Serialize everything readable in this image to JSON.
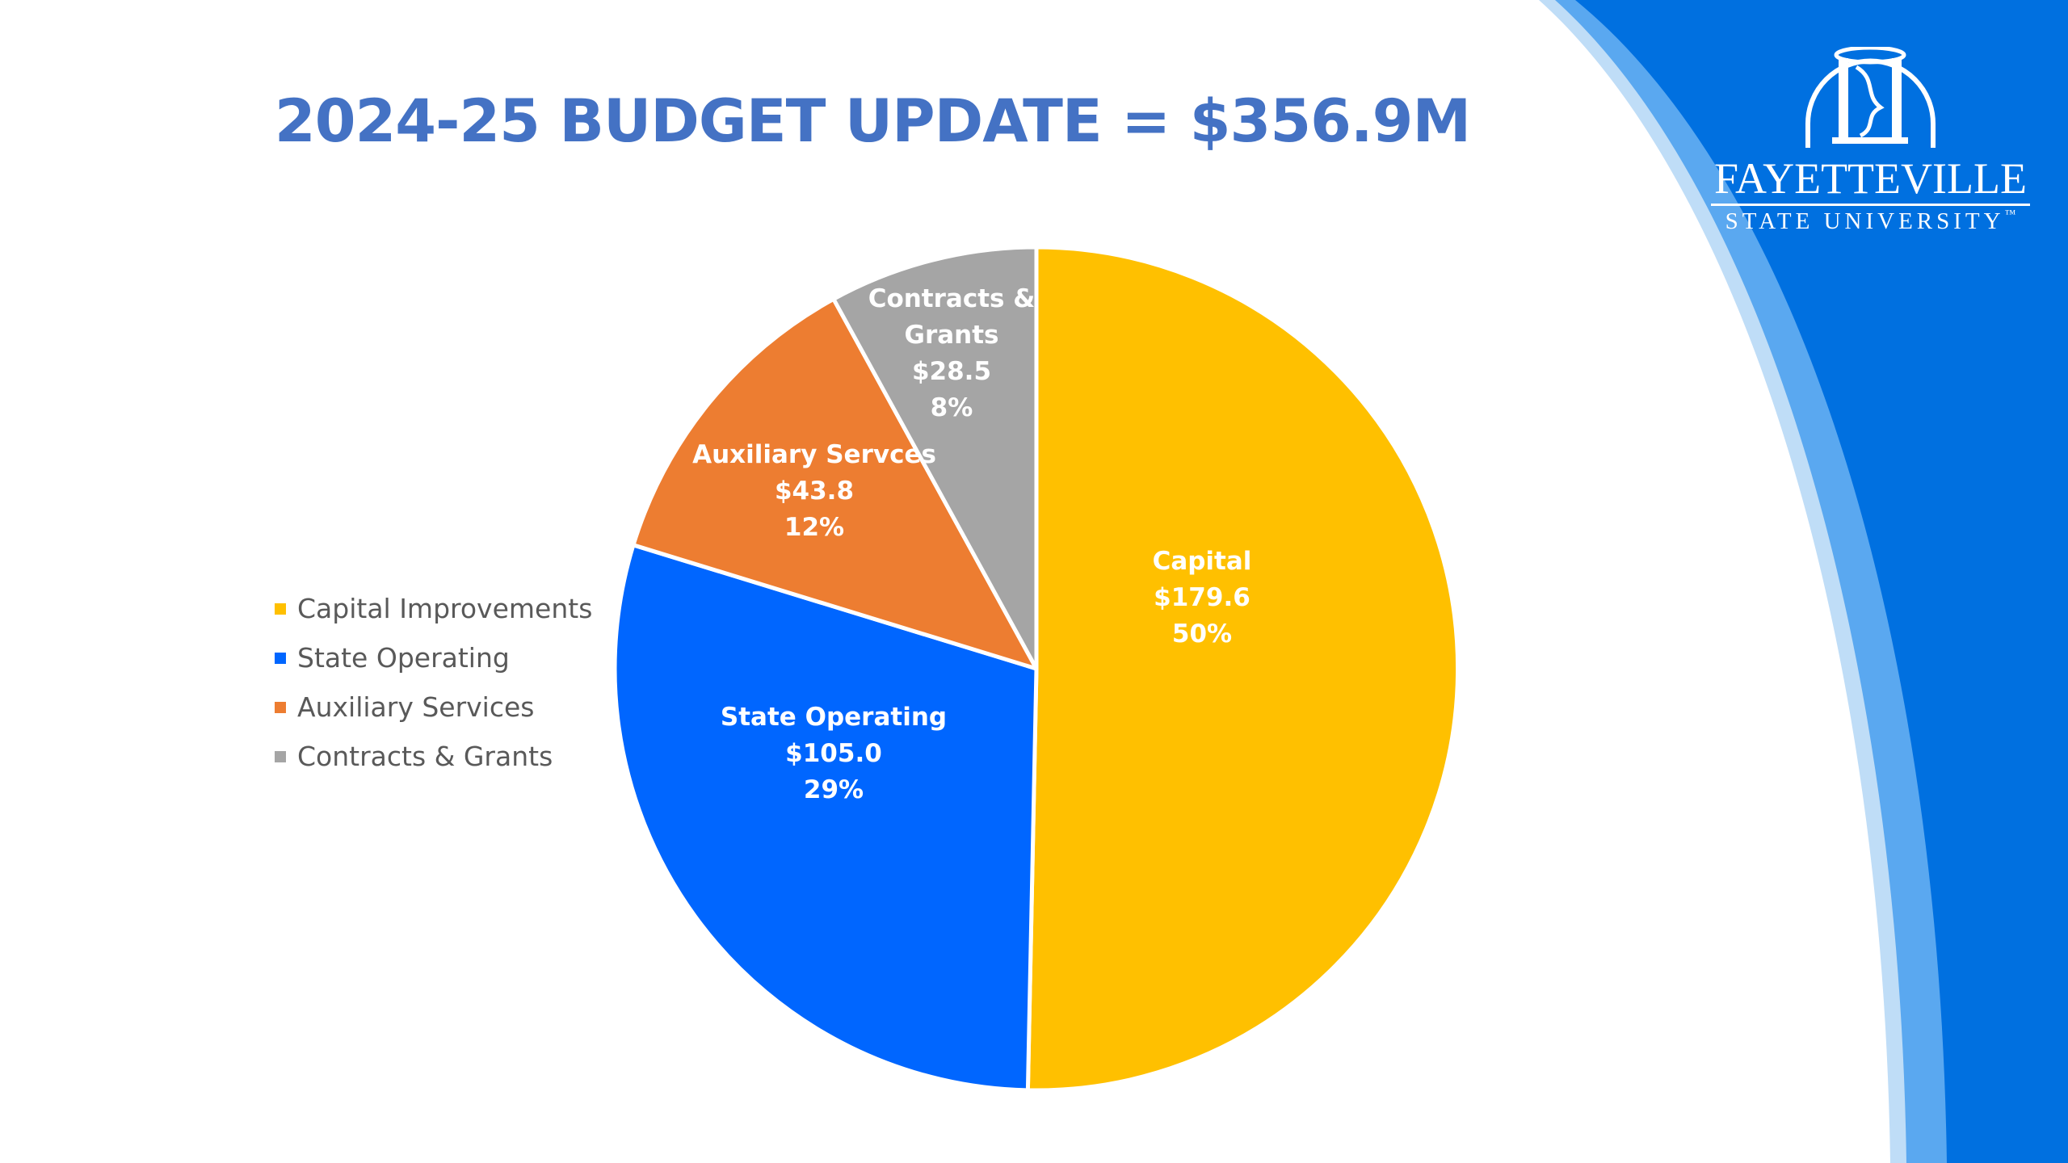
{
  "slide": {
    "title": "2024-25 BUDGET UPDATE = $356.9M"
  },
  "logo": {
    "name": "FAYETTEVILLE",
    "sub": "STATE UNIVERSITY",
    "trademark": "™"
  },
  "colors": {
    "title": "#4472C4",
    "band_dark": "#0070E0",
    "band_mid": "#5AA8F0",
    "band_light": "#BFDDF7"
  },
  "chart_data": {
    "type": "pie",
    "title": "",
    "legend_position": "left",
    "start_angle_deg": 0,
    "direction": "clockwise",
    "slices": [
      {
        "legend": "Capital Improvements",
        "label": "Capital",
        "value": 179.6,
        "value_label": "$179.6",
        "percent_label": "50%",
        "color": "#FFC000"
      },
      {
        "legend": "State Operating",
        "label": "State Operating",
        "value": 105.0,
        "value_label": "$105.0",
        "percent_label": "29%",
        "color": "#0066FF"
      },
      {
        "legend": "Auxiliary Services",
        "label": "Auxiliary Servces",
        "value": 43.8,
        "value_label": "$43.8",
        "percent_label": "12%",
        "color": "#ED7D31"
      },
      {
        "legend": "Contracts & Grants",
        "label": "Contracts & Grants",
        "value": 28.5,
        "value_label": "$28.5",
        "percent_label": "8%",
        "color": "#A5A5A5"
      }
    ]
  }
}
